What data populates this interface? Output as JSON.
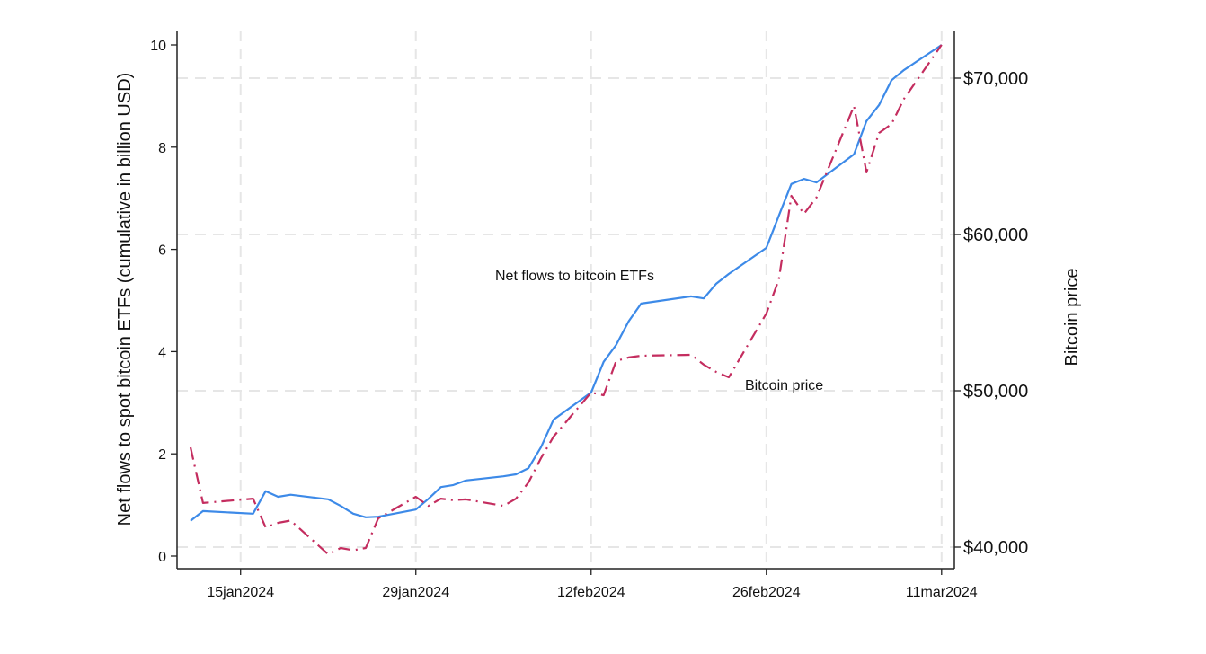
{
  "chart_data": {
    "type": "line",
    "title": "",
    "xlabel": "",
    "ylabel": "Net flows to spot bitcoin ETFs (cumulative in billion USD)",
    "y2label": "Bitcoin price",
    "ylim": [
      0,
      10
    ],
    "y2lim": [
      40000,
      70000
    ],
    "grid": true,
    "legend": "none (inline annotations)",
    "x_ticks": [
      "15jan2024",
      "29jan2024",
      "12feb2024",
      "26feb2024",
      "11mar2024"
    ],
    "y_ticks": [
      "0",
      "2",
      "4",
      "6",
      "8",
      "10"
    ],
    "y2_ticks": [
      "$40,000",
      "$50,000",
      "$60,000",
      "$70,000"
    ],
    "annotations": [
      {
        "text": "Net flows to bitcoin ETFs",
        "series": "Net flows to bitcoin ETFs"
      },
      {
        "text": "Bitcoin price",
        "series": "Bitcoin price"
      }
    ],
    "x": [
      "2024-01-11",
      "2024-01-12",
      "2024-01-16",
      "2024-01-17",
      "2024-01-18",
      "2024-01-19",
      "2024-01-22",
      "2024-01-23",
      "2024-01-24",
      "2024-01-25",
      "2024-01-26",
      "2024-01-29",
      "2024-01-30",
      "2024-01-31",
      "2024-02-01",
      "2024-02-02",
      "2024-02-05",
      "2024-02-06",
      "2024-02-07",
      "2024-02-08",
      "2024-02-09",
      "2024-02-12",
      "2024-02-13",
      "2024-02-14",
      "2024-02-15",
      "2024-02-16",
      "2024-02-20",
      "2024-02-21",
      "2024-02-22",
      "2024-02-23",
      "2024-02-26",
      "2024-02-27",
      "2024-02-28",
      "2024-02-29",
      "2024-03-01",
      "2024-03-04",
      "2024-03-05",
      "2024-03-06",
      "2024-03-07",
      "2024-03-08",
      "2024-03-11"
    ],
    "series": [
      {
        "name": "Net flows to bitcoin ETFs",
        "axis": "left",
        "color": "#3d8ae8",
        "style": "solid",
        "values": [
          0.69,
          0.88,
          0.83,
          1.27,
          1.16,
          1.2,
          1.11,
          0.98,
          0.83,
          0.76,
          0.77,
          0.91,
          1.12,
          1.35,
          1.39,
          1.48,
          1.56,
          1.6,
          1.72,
          2.13,
          2.67,
          3.2,
          3.8,
          4.13,
          4.59,
          4.94,
          5.08,
          5.04,
          5.33,
          5.52,
          6.03,
          6.66,
          7.28,
          7.38,
          7.31,
          7.86,
          8.51,
          8.82,
          9.31,
          9.51,
          10.0
        ]
      },
      {
        "name": "Bitcoin price",
        "axis": "right",
        "color": "#c42d5f",
        "style": "dash-dot",
        "values": [
          46380,
          42820,
          43100,
          41260,
          41550,
          41700,
          39540,
          39940,
          39800,
          39940,
          41840,
          43220,
          42640,
          43100,
          43000,
          43050,
          42640,
          43100,
          44140,
          45690,
          47070,
          49890,
          49710,
          51900,
          52130,
          52240,
          52300,
          51670,
          51200,
          50860,
          54940,
          57130,
          62470,
          61320,
          62360,
          68220,
          63970,
          66490,
          67070,
          68680,
          72130
        ]
      }
    ]
  }
}
